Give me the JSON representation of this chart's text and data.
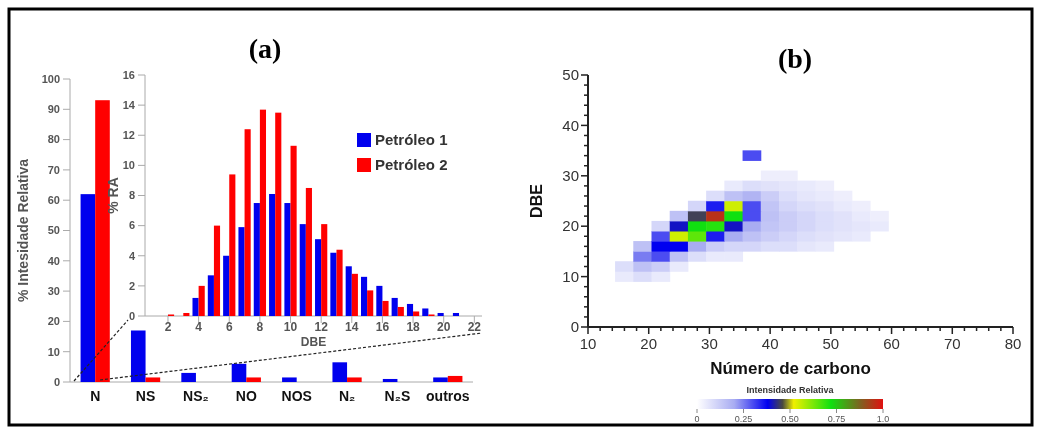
{
  "chart_data": [
    {
      "type": "bar",
      "title": "(a)",
      "ylabel": "% Intesidade Relativa",
      "categories": [
        "N",
        "NS",
        "NS₂",
        "NO",
        "NOS",
        "N₂",
        "N₂S",
        "outros"
      ],
      "series": [
        {
          "color": "#0000ee",
          "values": [
            62,
            17,
            3,
            6,
            1.5,
            6.5,
            1,
            1.5
          ]
        },
        {
          "color": "#ff0000",
          "values": [
            93,
            1.5,
            0,
            1.5,
            0,
            1.5,
            0,
            2
          ]
        }
      ],
      "ylim": [
        0,
        100
      ],
      "yticks": [
        0,
        10,
        20,
        30,
        40,
        50,
        60,
        70,
        80,
        90,
        100
      ]
    },
    {
      "type": "bar",
      "xlabel": "DBE",
      "ylabel": "% RA",
      "x": [
        2,
        3,
        4,
        5,
        6,
        7,
        8,
        9,
        10,
        11,
        12,
        13,
        14,
        15,
        16,
        17,
        18,
        19,
        20,
        21
      ],
      "series": [
        {
          "name": "Petróleo 1",
          "color": "#0000ee",
          "values": [
            0,
            0,
            1.2,
            2.7,
            4.0,
            5.9,
            7.5,
            8.1,
            7.5,
            6.1,
            5.1,
            4.2,
            3.3,
            2.6,
            2.0,
            1.2,
            0.8,
            0.5,
            0.2,
            0.2
          ]
        },
        {
          "name": "Petróleo 2",
          "color": "#ff0000",
          "values": [
            0.1,
            0.2,
            2.0,
            6.0,
            9.4,
            12.4,
            13.7,
            13.5,
            11.3,
            8.5,
            6.1,
            4.4,
            2.8,
            1.7,
            1.0,
            0.6,
            0.3,
            0.1,
            null,
            null
          ]
        }
      ],
      "xlim": [
        0.5,
        22.5
      ],
      "xticks": [
        2,
        4,
        6,
        8,
        10,
        12,
        14,
        16,
        18,
        20,
        22
      ],
      "ylim": [
        0,
        16
      ],
      "yticks": [
        0,
        2,
        4,
        6,
        8,
        10,
        12,
        14,
        16
      ],
      "legend": "top right"
    },
    {
      "type": "scatter",
      "title": "(b)",
      "xlabel": "Número de carbono",
      "ylabel": "DBE",
      "clabel": "Intensidade Relativa",
      "marker": "square",
      "series": [
        {
          "x": [
            16,
            19,
            22,
            16,
            19,
            22,
            25,
            19,
            22,
            25,
            28,
            31,
            34,
            19,
            22,
            25,
            28,
            31,
            34,
            37,
            40,
            43,
            46,
            49,
            22,
            25,
            28,
            31,
            34,
            37,
            40,
            43,
            46,
            49,
            52,
            55,
            22,
            25,
            28,
            31,
            34,
            37,
            40,
            43,
            46,
            49,
            52,
            55,
            58,
            25,
            28,
            31,
            34,
            37,
            40,
            43,
            46,
            49,
            52,
            55,
            58,
            28,
            31,
            34,
            37,
            40,
            43,
            46,
            49,
            52,
            55,
            31,
            34,
            37,
            40,
            43,
            46,
            49,
            52,
            34,
            37,
            40,
            43,
            46,
            49,
            40,
            43,
            37
          ],
          "values": [
            10,
            10,
            10,
            12,
            12,
            12,
            12,
            14,
            14,
            14,
            14,
            14,
            14,
            16,
            16,
            16,
            16,
            16,
            16,
            16,
            16,
            16,
            16,
            16,
            18,
            18,
            18,
            18,
            18,
            18,
            18,
            18,
            18,
            18,
            18,
            18,
            20,
            20,
            20,
            20,
            20,
            20,
            20,
            20,
            20,
            20,
            20,
            20,
            20,
            22,
            22,
            22,
            22,
            22,
            22,
            22,
            22,
            22,
            22,
            22,
            22,
            24,
            24,
            24,
            24,
            24,
            24,
            24,
            24,
            24,
            24,
            26,
            26,
            26,
            26,
            26,
            26,
            26,
            26,
            28,
            28,
            28,
            28,
            28,
            28,
            30,
            30,
            34
          ],
          "cvalues": [
            0.05,
            0.08,
            0.05,
            0.08,
            0.15,
            0.12,
            0.05,
            0.25,
            0.3,
            0.15,
            0.08,
            0.05,
            0.05,
            0.15,
            0.38,
            0.38,
            0.2,
            0.12,
            0.1,
            0.1,
            0.08,
            0.08,
            0.06,
            0.05,
            0.3,
            0.55,
            0.65,
            0.35,
            0.2,
            0.15,
            0.12,
            0.1,
            0.08,
            0.07,
            0.06,
            0.05,
            0.1,
            0.4,
            0.72,
            0.7,
            0.4,
            0.2,
            0.14,
            0.12,
            0.1,
            0.08,
            0.07,
            0.06,
            0.05,
            0.15,
            0.45,
            0.95,
            0.72,
            0.3,
            0.15,
            0.12,
            0.1,
            0.08,
            0.07,
            0.05,
            0.04,
            0.1,
            0.35,
            0.55,
            0.3,
            0.14,
            0.1,
            0.08,
            0.07,
            0.05,
            0.04,
            0.08,
            0.15,
            0.18,
            0.12,
            0.08,
            0.06,
            0.05,
            0.04,
            0.05,
            0.08,
            0.07,
            0.06,
            0.05,
            0.04,
            0.04,
            0.04,
            0.3
          ]
        }
      ],
      "xlim": [
        10,
        80
      ],
      "xticks": [
        10,
        {
          "value": 12,
          "label": null
        },
        {
          "value": 14,
          "label": null
        },
        {
          "value": 16,
          "label": null
        },
        {
          "value": 18,
          "label": null
        },
        20,
        {
          "value": 22,
          "label": null
        },
        {
          "value": 24,
          "label": null
        },
        {
          "value": 26,
          "label": null
        },
        {
          "value": 28,
          "label": null
        },
        30,
        {
          "value": 32,
          "label": null
        },
        {
          "value": 34,
          "label": null
        },
        {
          "value": 36,
          "label": null
        },
        {
          "value": 38,
          "label": null
        },
        40,
        {
          "value": 42,
          "label": null
        },
        {
          "value": 44,
          "label": null
        },
        {
          "value": 46,
          "label": null
        },
        {
          "value": 48,
          "label": null
        },
        50,
        {
          "value": 52,
          "label": null
        },
        {
          "value": 54,
          "label": null
        },
        {
          "value": 56,
          "label": null
        },
        {
          "value": 58,
          "label": null
        },
        60,
        {
          "value": 62,
          "label": null
        },
        {
          "value": 64,
          "label": null
        },
        {
          "value": 66,
          "label": null
        },
        {
          "value": 68,
          "label": null
        },
        70,
        {
          "value": 72,
          "label": null
        },
        {
          "value": 74,
          "label": null
        },
        {
          "value": 76,
          "label": null
        },
        {
          "value": 78,
          "label": null
        },
        80
      ],
      "ylim": [
        0,
        50
      ],
      "yticks": [
        0,
        {
          "value": 2,
          "label": null
        },
        {
          "value": 4,
          "label": null
        },
        {
          "value": 6,
          "label": null
        },
        {
          "value": 8,
          "label": null
        },
        10,
        {
          "value": 12,
          "label": null
        },
        {
          "value": 14,
          "label": null
        },
        {
          "value": 16,
          "label": null
        },
        {
          "value": 18,
          "label": null
        },
        20,
        {
          "value": 22,
          "label": null
        },
        {
          "value": 24,
          "label": null
        },
        {
          "value": 26,
          "label": null
        },
        {
          "value": 28,
          "label": null
        },
        30,
        {
          "value": 32,
          "label": null
        },
        {
          "value": 34,
          "label": null
        },
        {
          "value": 36,
          "label": null
        },
        {
          "value": 38,
          "label": null
        },
        40,
        {
          "value": 42,
          "label": null
        },
        {
          "value": 44,
          "label": null
        },
        {
          "value": 46,
          "label": null
        },
        {
          "value": 48,
          "label": null
        },
        50
      ],
      "clim": [
        0,
        1
      ],
      "cticks": [
        0,
        0.25,
        {
          "value": 0.5,
          "label": "0.50"
        },
        0.75,
        {
          "value": 1,
          "label": "1.0"
        }
      ]
    }
  ]
}
